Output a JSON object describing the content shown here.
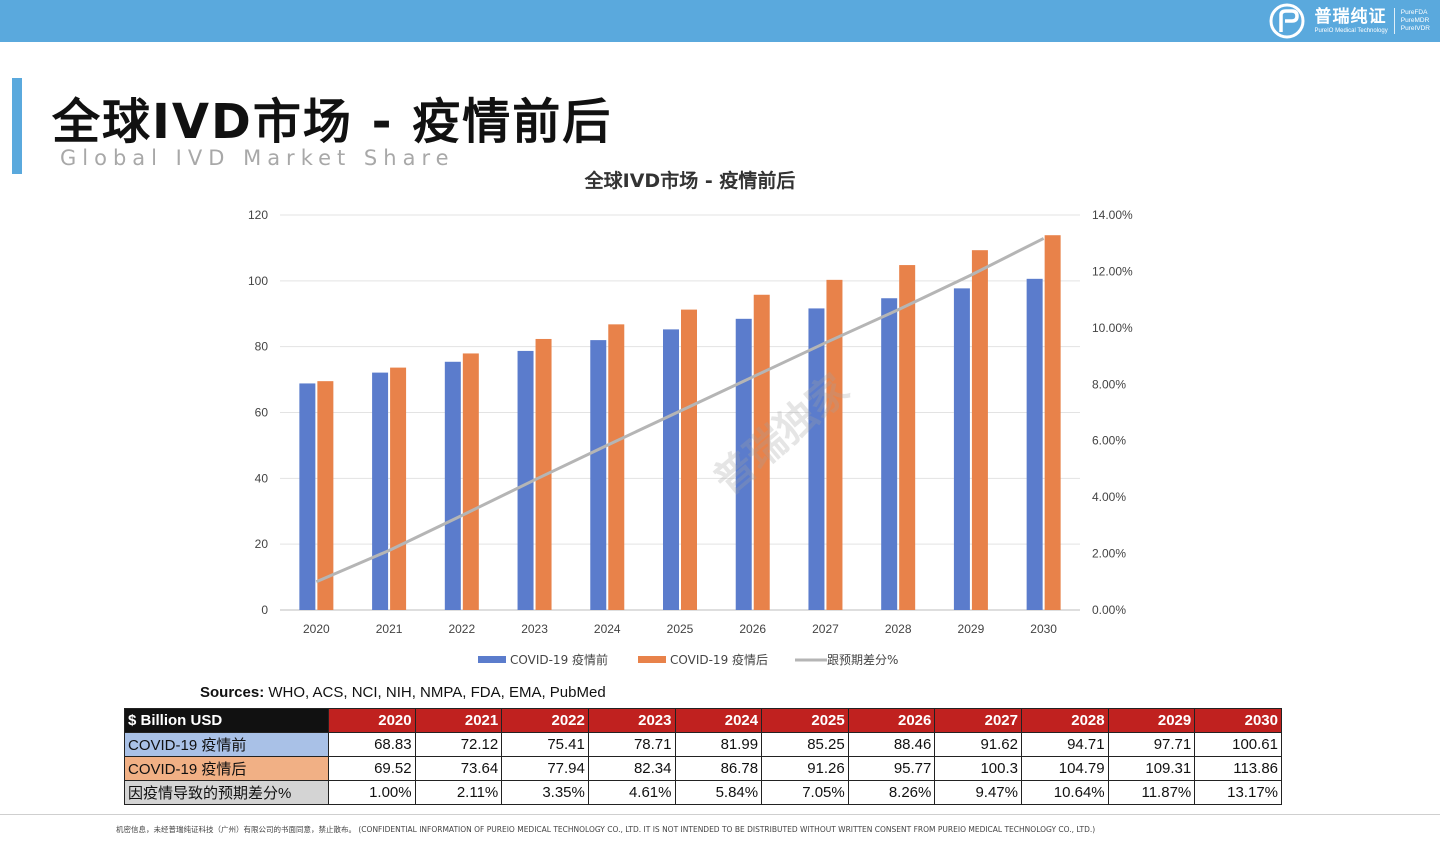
{
  "header": {
    "logo_cn": "普瑞纯证",
    "logo_en": "PureIO Medical Technology",
    "logo_brands": [
      "PureFDA",
      "PureMDR",
      "PureIVDR"
    ]
  },
  "page": {
    "title": "全球IVD市场 - 疫情前后",
    "subtitle": "Global IVD Market Share"
  },
  "colors": {
    "before": "#5b7ccc",
    "after": "#e8824a",
    "diff": "#b5b5b5",
    "header_bar": "#5aa9dd",
    "table_header": "#c0211f"
  },
  "chart_data": {
    "type": "bar",
    "title": "全球IVD市场 - 疫情前后",
    "categories": [
      "2020",
      "2021",
      "2022",
      "2023",
      "2024",
      "2025",
      "2026",
      "2027",
      "2028",
      "2029",
      "2030"
    ],
    "series": [
      {
        "name": "COVID-19 疫情前",
        "type": "bar",
        "axis": "left",
        "values": [
          68.83,
          72.12,
          75.41,
          78.71,
          81.99,
          85.25,
          88.46,
          91.62,
          94.71,
          97.71,
          100.61
        ]
      },
      {
        "name": "COVID-19 疫情后",
        "type": "bar",
        "axis": "left",
        "values": [
          69.52,
          73.64,
          77.94,
          82.34,
          86.78,
          91.26,
          95.77,
          100.3,
          104.79,
          109.31,
          113.86
        ]
      },
      {
        "name": "跟预期差分%",
        "type": "line",
        "axis": "right",
        "values": [
          1.0,
          2.11,
          3.35,
          4.61,
          5.84,
          7.05,
          8.26,
          9.47,
          10.64,
          11.87,
          13.17
        ]
      }
    ],
    "ylim": [
      0,
      120
    ],
    "yticks": [
      "0",
      "20",
      "40",
      "60",
      "80",
      "100",
      "120"
    ],
    "y2lim": [
      0,
      14
    ],
    "y2ticks": [
      "0.00%",
      "2.00%",
      "4.00%",
      "6.00%",
      "8.00%",
      "10.00%",
      "12.00%",
      "14.00%"
    ],
    "grid": true,
    "legend": "bottom",
    "watermark": "普瑞独家"
  },
  "sources": {
    "label": "Sources:",
    "text": "WHO, ACS, NCI, NIH, NMPA, FDA, EMA, PubMed"
  },
  "table": {
    "corner": "$ Billion USD",
    "years": [
      "2020",
      "2021",
      "2022",
      "2023",
      "2024",
      "2025",
      "2026",
      "2027",
      "2028",
      "2029",
      "2030"
    ],
    "rows": [
      {
        "label": "COVID-19 疫情前",
        "cells": [
          "68.83",
          "72.12",
          "75.41",
          "78.71",
          "81.99",
          "85.25",
          "88.46",
          "91.62",
          "94.71",
          "97.71",
          "100.61"
        ]
      },
      {
        "label": "COVID-19 疫情后",
        "cells": [
          "69.52",
          "73.64",
          "77.94",
          "82.34",
          "86.78",
          "91.26",
          "95.77",
          "100.3",
          "104.79",
          "109.31",
          "113.86"
        ]
      },
      {
        "label": "因疫情导致的预期差分%",
        "cells": [
          "1.00%",
          "2.11%",
          "3.35%",
          "4.61%",
          "5.84%",
          "7.05%",
          "8.26%",
          "9.47%",
          "10.64%",
          "11.87%",
          "13.17%"
        ]
      }
    ]
  },
  "footer": {
    "text": "机密信息，未经普瑞纯证科技（广州）有限公司的书面同意，禁止散布。 (CONFIDENTIAL INFORMATION OF PUREIO MEDICAL TECHNOLOGY CO., LTD. IT IS NOT INTENDED TO BE DISTRIBUTED WITHOUT WRITTEN CONSENT FROM PUREIO MEDICAL TECHNOLOGY CO., LTD.)"
  }
}
